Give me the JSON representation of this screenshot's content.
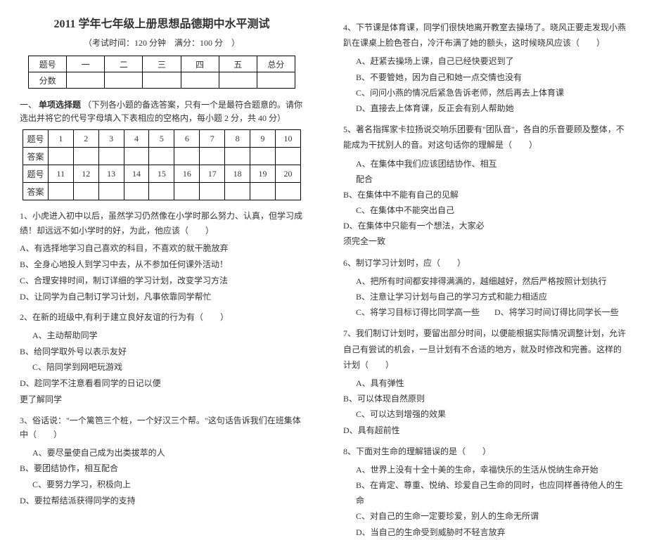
{
  "title": "2011 学年七年级上册思想品德期中水平测试",
  "subtitle": "（考试时间：120 分钟　满分：100 分　）",
  "scoreTable": {
    "headers": [
      "题号",
      "一",
      "二",
      "三",
      "四",
      "五",
      "总分"
    ],
    "rowLabel": "分数"
  },
  "section1": {
    "num": "一、",
    "title": "单项选择题",
    "desc": "（下列各小题的备选答案，只有一个是最符合题意的。请你选出并将它的代号字母填入下表相应的空格内，每小题 2 分，共 40 分）"
  },
  "answerGrid": {
    "rowLabels": [
      "题号",
      "答案",
      "题号",
      "答案"
    ],
    "nums1": [
      "1",
      "2",
      "3",
      "4",
      "5",
      "6",
      "7",
      "8",
      "9",
      "10"
    ],
    "nums2": [
      "11",
      "12",
      "13",
      "14",
      "15",
      "16",
      "17",
      "18",
      "19",
      "20"
    ]
  },
  "q1": {
    "text": "1、小虎进入初中以后，虽然学习仍然像在小学时那么努力、认真，但学习成绩！却远远不如小学时的好，为此，他应该（　　）",
    "a": "A、有选择地学习自己喜欢的科目，不喜欢的就干脆放弃",
    "b": "B、全身心地投人到学习中去，从不参加任何课外活动！",
    "c": "C、合理安排时间，制订详细的学习计划，改变学习方法",
    "d": "D、让同学为自己制订学习计划，凡事依靠同学帮忙"
  },
  "q2": {
    "text": "2、在新的班级中,有利于建立良好友谊的行为有（　　）",
    "a": "A、主动帮助同学",
    "b": "B、给同学取外号以表示友好",
    "c": "C、陪同学到网吧玩游戏",
    "d": "D、趁同学不注意看看同学的日记以便更了解同学"
  },
  "q3": {
    "text": "3、俗话说：\"一个篱笆三个桩，一个好汉三个帮。\"这句话告诉我们在班集体中（　　）",
    "a": "A、要尽量使自己成为出类拔萃的人",
    "b": "B、要团结协作，相互配合",
    "c": "C、要努力学习，积极向上",
    "d": "D、要拉帮结派获得同学的支持"
  },
  "q4": {
    "text": "4、下节课是体育课，同学们很快地离开教室去操场了。晓风正要走发现小燕趴在课桌上脸色苍白，冷汗布满了她的额头，这时候晓风应该（　　）",
    "a": "A、赶紧去操场上课，自己已经快要迟到了",
    "b": "B、不要管她，因为自己和她一点交情也没有",
    "c": "C、问问小燕的情况后紧急告诉老师，然后再去上体育课",
    "d": "D、直接去上体育课，反正会有别人帮助她"
  },
  "q5": {
    "text": "5、著名指挥家卡拉扬说交响乐团要有\"团队音\"，各自的乐音要顾及整体，不能成为干扰别人的音。对这句话你的理解是（　　）",
    "a": "A、在集体中我们应该团结协作、相互配合",
    "b": "B、在集体中不能有自己的见解",
    "c": "C、在集体中不能突出自己",
    "d": "D、在集体中只能有一个想法，大家必须完全一致"
  },
  "q6": {
    "text": "6、制订学习计划时，应（　　）",
    "a": "A、把所有时间都安排得满满的，越细越好，然后严格按照计划执行",
    "b": "B、注意让学习计划与自己的学习方式和能力相适应",
    "c": "C、将学习目标订得比同学高一些",
    "d": "D、将学习时间订得比同学长一些"
  },
  "q7": {
    "text": "7、我们制订计划时，要留出部分时间，以便能根据实际情况调整计划，允许自己有尝试的机会，一旦计划有不合适的地方，就及时修改和完善。这样的计划（　　）",
    "a": "A、具有弹性",
    "b": "B、可以体现自然原则",
    "c": "C、可以达到增强的效果",
    "d": "D、具有超前性"
  },
  "q8": {
    "text": "8、下面对生命的理解错误的是（　　）",
    "a": "A、世界上没有十全十美的生命，幸福快乐的生活从悦纳生命开始",
    "b": "B、在肯定、尊重、悦纳、珍爱自己生命的同时，也应同样善待他人的生命",
    "c": "C、对自己的生命一定要珍爱，别人的生命无所谓",
    "d": "D、当自己的生命受到威胁时不轻言放弃"
  }
}
